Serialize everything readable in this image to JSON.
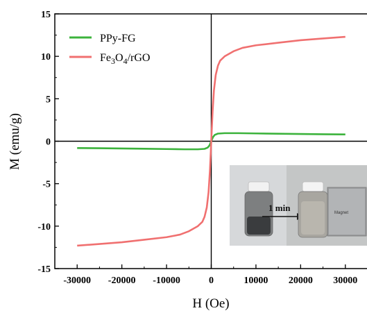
{
  "chart_data": {
    "type": "line",
    "xlabel": "H (Oe)",
    "ylabel": "M (emu/g)",
    "xlim": [
      -35000,
      35000
    ],
    "ylim": [
      -15,
      15
    ],
    "x_ticks": [
      -30000,
      -20000,
      -10000,
      0,
      10000,
      20000,
      30000
    ],
    "y_ticks": [
      -15,
      -10,
      -5,
      0,
      5,
      10,
      15
    ],
    "grid": false,
    "legend_position": "top-left",
    "series": [
      {
        "name": "PPy-FG",
        "color": "#3cb33c",
        "points": [
          [
            -30000,
            -0.8
          ],
          [
            -25000,
            -0.82
          ],
          [
            -20000,
            -0.85
          ],
          [
            -15000,
            -0.88
          ],
          [
            -10000,
            -0.92
          ],
          [
            -6000,
            -0.95
          ],
          [
            -3000,
            -0.95
          ],
          [
            -1500,
            -0.9
          ],
          [
            -800,
            -0.75
          ],
          [
            -400,
            -0.5
          ],
          [
            0,
            0
          ],
          [
            400,
            0.5
          ],
          [
            800,
            0.75
          ],
          [
            1500,
            0.9
          ],
          [
            3000,
            0.95
          ],
          [
            6000,
            0.95
          ],
          [
            10000,
            0.92
          ],
          [
            15000,
            0.88
          ],
          [
            20000,
            0.85
          ],
          [
            25000,
            0.82
          ],
          [
            30000,
            0.8
          ]
        ]
      },
      {
        "name": "Fe3O4/rGO",
        "name_parts": [
          "Fe",
          "3",
          "O",
          "4",
          "/rGO"
        ],
        "color": "#f07070",
        "points": [
          [
            -30000,
            -12.3
          ],
          [
            -25000,
            -12.1
          ],
          [
            -20000,
            -11.9
          ],
          [
            -15000,
            -11.6
          ],
          [
            -10000,
            -11.3
          ],
          [
            -7000,
            -11.0
          ],
          [
            -5000,
            -10.6
          ],
          [
            -3000,
            -10.0
          ],
          [
            -2000,
            -9.5
          ],
          [
            -1500,
            -8.9
          ],
          [
            -1000,
            -7.8
          ],
          [
            -600,
            -6.0
          ],
          [
            -300,
            -3.5
          ],
          [
            -100,
            -1.2
          ],
          [
            0,
            0
          ],
          [
            100,
            1.2
          ],
          [
            300,
            3.5
          ],
          [
            600,
            6.0
          ],
          [
            1000,
            7.8
          ],
          [
            1500,
            8.9
          ],
          [
            2000,
            9.5
          ],
          [
            3000,
            10.0
          ],
          [
            5000,
            10.6
          ],
          [
            7000,
            11.0
          ],
          [
            10000,
            11.3
          ],
          [
            15000,
            11.6
          ],
          [
            20000,
            11.9
          ],
          [
            25000,
            12.1
          ],
          [
            30000,
            12.3
          ]
        ]
      }
    ],
    "inset": {
      "annotation": "1 min",
      "magnet_label": "Magnet"
    }
  }
}
